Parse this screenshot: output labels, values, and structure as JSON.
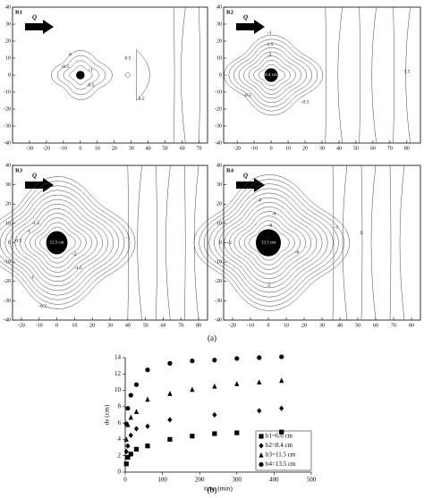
{
  "chart_data": [
    {
      "type": "contour",
      "title": "R1",
      "flow_label": "Q",
      "xlim": [
        -40,
        75
      ],
      "xticks": [
        -30,
        -20,
        -10,
        0,
        10,
        20,
        30,
        40,
        50,
        60,
        70
      ],
      "ylim": [
        -40,
        40
      ],
      "yticks": [
        -40,
        -30,
        -20,
        -10,
        0,
        10,
        20,
        30,
        40
      ],
      "contour_labels": [
        "-0.5",
        "-1",
        "0",
        "0.5",
        "0.5",
        "-0.5"
      ]
    },
    {
      "type": "contour",
      "title": "R2",
      "flow_label": "Q",
      "pile_label": "8.4 cm",
      "xlim": [
        -28,
        88
      ],
      "xticks": [
        -20,
        -10,
        0,
        10,
        20,
        30,
        40,
        50,
        60,
        70,
        80
      ],
      "ylim": [
        -40,
        40
      ],
      "yticks": [
        -40,
        -30,
        -20,
        -10,
        0,
        10,
        20,
        30,
        40
      ],
      "contour_labels": [
        "-2",
        "-1.5",
        "-1",
        "-0.5",
        "-0.5",
        "3.5"
      ]
    },
    {
      "type": "contour",
      "title": "R3",
      "flow_label": "Q",
      "pile_label": "11.5 cm",
      "xlim": [
        -25,
        85
      ],
      "xticks": [
        -20,
        -10,
        0,
        10,
        20,
        30,
        40,
        50,
        60,
        70,
        80
      ],
      "ylim": [
        -40,
        40
      ],
      "yticks": [
        -40,
        -30,
        -20,
        -10,
        0,
        10,
        20,
        30,
        40
      ],
      "contour_labels": [
        "-0.5",
        "-1",
        "-1.5",
        "-2",
        "-1.5",
        "-1",
        "-1",
        "-0.5"
      ]
    },
    {
      "type": "contour",
      "title": "R4",
      "flow_label": "Q",
      "pile_label": "13.5 cm",
      "xlim": [
        -25,
        85
      ],
      "xticks": [
        -20,
        -10,
        0,
        10,
        20,
        30,
        40,
        50,
        60,
        70,
        80
      ],
      "ylim": [
        -40,
        40
      ],
      "yticks": [
        -40,
        -30,
        -20,
        -10,
        0,
        10,
        20,
        30,
        40
      ],
      "contour_labels": [
        "-2",
        "-4",
        "-6",
        "+2",
        "-6",
        "-2",
        "-1",
        "0"
      ]
    },
    {
      "type": "scatter",
      "x_label": "time (min)",
      "y_label": "ds (cm)",
      "xlim": [
        0,
        500
      ],
      "xticks": [
        0,
        100,
        200,
        300,
        400,
        500
      ],
      "ylim": [
        0,
        14
      ],
      "yticks": [
        0,
        2,
        4,
        6,
        8,
        10,
        12,
        14
      ],
      "series": [
        {
          "name": "b1=6.6 cm",
          "marker": "square",
          "color": "#000000",
          "x": [
            3,
            7,
            15,
            30,
            60,
            120,
            180,
            240,
            300,
            420
          ],
          "values": [
            1.0,
            1.8,
            2.2,
            2.8,
            3.2,
            4.0,
            4.4,
            4.7,
            4.8,
            4.9
          ]
        },
        {
          "name": "b2=8.4 cm",
          "marker": "diamond",
          "color": "#000000",
          "x": [
            3,
            7,
            15,
            30,
            60,
            120,
            240,
            360,
            420
          ],
          "values": [
            2.5,
            3.2,
            4.5,
            5.3,
            5.6,
            6.4,
            7.0,
            7.5,
            7.8
          ]
        },
        {
          "name": "b3=11.5 cm",
          "marker": "triangle",
          "color": "#000000",
          "x": [
            3,
            7,
            15,
            30,
            60,
            120,
            180,
            240,
            300,
            360,
            420
          ],
          "values": [
            4.0,
            5.8,
            6.7,
            7.4,
            8.9,
            9.6,
            10.1,
            10.5,
            10.8,
            11.0,
            11.2
          ]
        },
        {
          "name": "b4=13.5 cm",
          "marker": "circle",
          "color": "#000000",
          "x": [
            3,
            7,
            15,
            30,
            60,
            120,
            180,
            240,
            300,
            360,
            420
          ],
          "values": [
            5.9,
            7.8,
            9.4,
            10.7,
            12.5,
            13.3,
            13.6,
            13.7,
            13.9,
            14.0,
            14.1
          ]
        }
      ]
    }
  ],
  "figure_labels": [
    "(a)",
    "(b)"
  ]
}
